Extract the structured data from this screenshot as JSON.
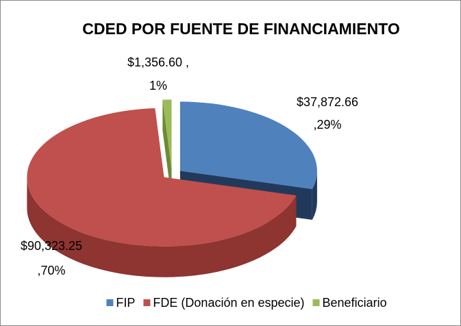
{
  "chart_data": {
    "type": "pie",
    "title": "CDED POR FUENTE DE FINANCIAMIENTO",
    "categories": [
      "FIP",
      "FDE (Donación en especie)",
      "Beneficiario"
    ],
    "values": [
      37872.66,
      90323.25,
      1356.6
    ],
    "value_labels": [
      "$37,872.66",
      "$90,323.25",
      "$1,356.60 ,"
    ],
    "percent_labels": [
      ",29%",
      ",70%",
      "1%"
    ],
    "colors": [
      "#4f81bd",
      "#c0504d",
      "#9bbb59"
    ],
    "side_colors": [
      "#213a5c",
      "#8e3431",
      "#6c8a36"
    ],
    "legend": "bottom"
  }
}
